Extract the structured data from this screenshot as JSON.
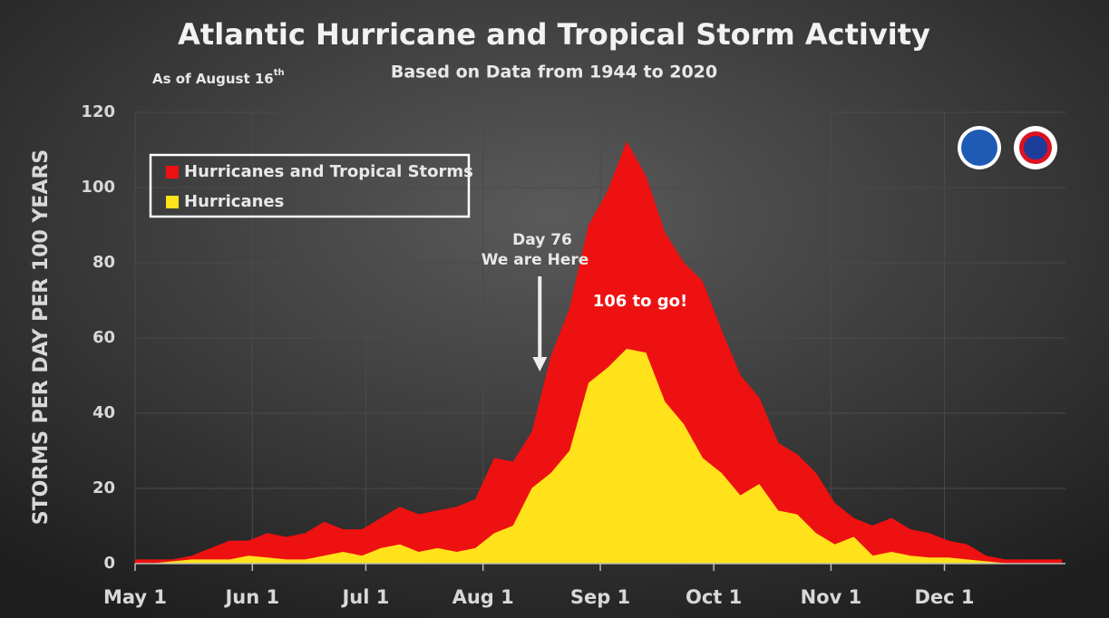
{
  "chart_data": {
    "type": "area",
    "title": "Atlantic Hurricane and Tropical Storm Activity",
    "subtitle": "Based on Data from 1944 to 2020",
    "note": "As of August 16",
    "note_sup": "th",
    "y_label": "STORMS PER DAY PER 100 YEARS",
    "annotations": [
      "Day 76",
      "We are Here",
      "106 to go!"
    ],
    "x": [
      0,
      5,
      10,
      15,
      20,
      25,
      30,
      35,
      40,
      45,
      50,
      55,
      60,
      65,
      70,
      75,
      80,
      85,
      90,
      95,
      100,
      105,
      110,
      115,
      120,
      125,
      130,
      135,
      140,
      145,
      150,
      155,
      160,
      165,
      170,
      175,
      180,
      185,
      190,
      195,
      200,
      205,
      210,
      215,
      220,
      225,
      230,
      235,
      240,
      245
    ],
    "series": [
      {
        "name": "Hurricanes and Tropical Storms",
        "color": "#ee1111",
        "values": [
          1,
          1,
          1,
          2,
          4,
          6,
          6,
          8,
          7,
          8,
          11,
          9,
          9,
          12,
          15,
          13,
          14,
          15,
          17,
          28,
          27,
          35,
          55,
          68,
          90,
          99,
          112,
          103,
          88,
          80,
          75,
          62,
          50,
          44,
          32,
          29,
          24,
          16,
          12,
          10,
          12,
          9,
          8,
          6,
          5,
          2,
          1,
          1,
          1,
          1
        ]
      },
      {
        "name": "Hurricanes",
        "color": "#ffe21a",
        "values": [
          0,
          0,
          0.5,
          1,
          1,
          1,
          2,
          1.5,
          1,
          1,
          2,
          3,
          2,
          4,
          5,
          3,
          4,
          3,
          4,
          8,
          10,
          20,
          24,
          30,
          48,
          52,
          57,
          56,
          43,
          37,
          28,
          24,
          18,
          21,
          14,
          13,
          8,
          5,
          7,
          2,
          3,
          2,
          1.5,
          1.5,
          1,
          0.5,
          0,
          0,
          0,
          0
        ]
      }
    ],
    "xlim": [
      0,
      246
    ],
    "xticks": [
      {
        "value": 0,
        "label": "May 1"
      },
      {
        "value": 31,
        "label": "Jun 1"
      },
      {
        "value": 61,
        "label": "Jul 1"
      },
      {
        "value": 92,
        "label": "Aug 1"
      },
      {
        "value": 123,
        "label": "Sep 1"
      },
      {
        "value": 153,
        "label": "Oct 1"
      },
      {
        "value": 184,
        "label": "Nov 1"
      },
      {
        "value": 214,
        "label": "Dec 1"
      }
    ],
    "ylim": [
      0,
      120
    ],
    "yticks": [
      0,
      20,
      40,
      60,
      80,
      100,
      120
    ],
    "grid": true,
    "legend": "upper left",
    "marker_day": 107
  }
}
